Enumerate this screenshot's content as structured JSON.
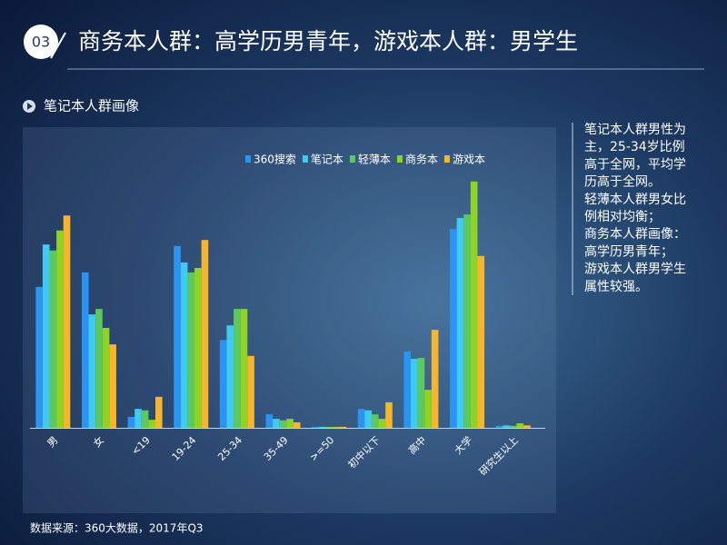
{
  "header": {
    "number": "03",
    "title": "商务本人群：高学历男青年，游戏本人群：男学生"
  },
  "section": "笔记本人群画像",
  "notes": [
    "笔记本人群男性为",
    "主，25-34岁比例",
    "高于全网，平均学",
    "历高于全网。",
    "轻薄本人群男女比",
    "例相对均衡；",
    "商务本人群画像：",
    "高学历男青年；",
    "游戏本人群男学生",
    "属性较强。"
  ],
  "source": "数据来源：360大数据，2017年Q3",
  "chart_data": {
    "type": "bar",
    "categories": [
      "男",
      "女",
      "<19",
      "19-24",
      "25-34",
      "35-49",
      ">=50",
      "初中以下",
      "高中",
      "大学",
      "研究生以上"
    ],
    "series": [
      {
        "name": "360搜索",
        "color": "#2b93f2",
        "values": [
          28.2,
          31.1,
          2.2,
          36.4,
          17.6,
          2.7,
          0.2,
          3.8,
          15.3,
          39.8,
          0.4
        ]
      },
      {
        "name": "笔记本",
        "color": "#3fcaf2",
        "values": [
          36.7,
          22.7,
          3.8,
          33.1,
          20.5,
          1.8,
          0.2,
          3.5,
          13.8,
          42.0,
          0.5
        ]
      },
      {
        "name": "轻薄本",
        "color": "#5cc85e",
        "values": [
          35.5,
          23.8,
          3.5,
          31.1,
          23.8,
          1.5,
          0.2,
          2.7,
          14.0,
          42.7,
          0.4
        ]
      },
      {
        "name": "商务本",
        "color": "#8fd424",
        "values": [
          39.5,
          20.0,
          1.6,
          32.0,
          23.8,
          1.8,
          0.2,
          1.8,
          7.6,
          49.3,
          0.9
        ]
      },
      {
        "name": "游戏本",
        "color": "#f6b52c",
        "values": [
          42.5,
          16.7,
          6.2,
          37.6,
          14.4,
          1.1,
          0.2,
          5.1,
          19.6,
          34.4,
          0.5
        ]
      }
    ],
    "ylim": [
      0,
      60
    ]
  }
}
